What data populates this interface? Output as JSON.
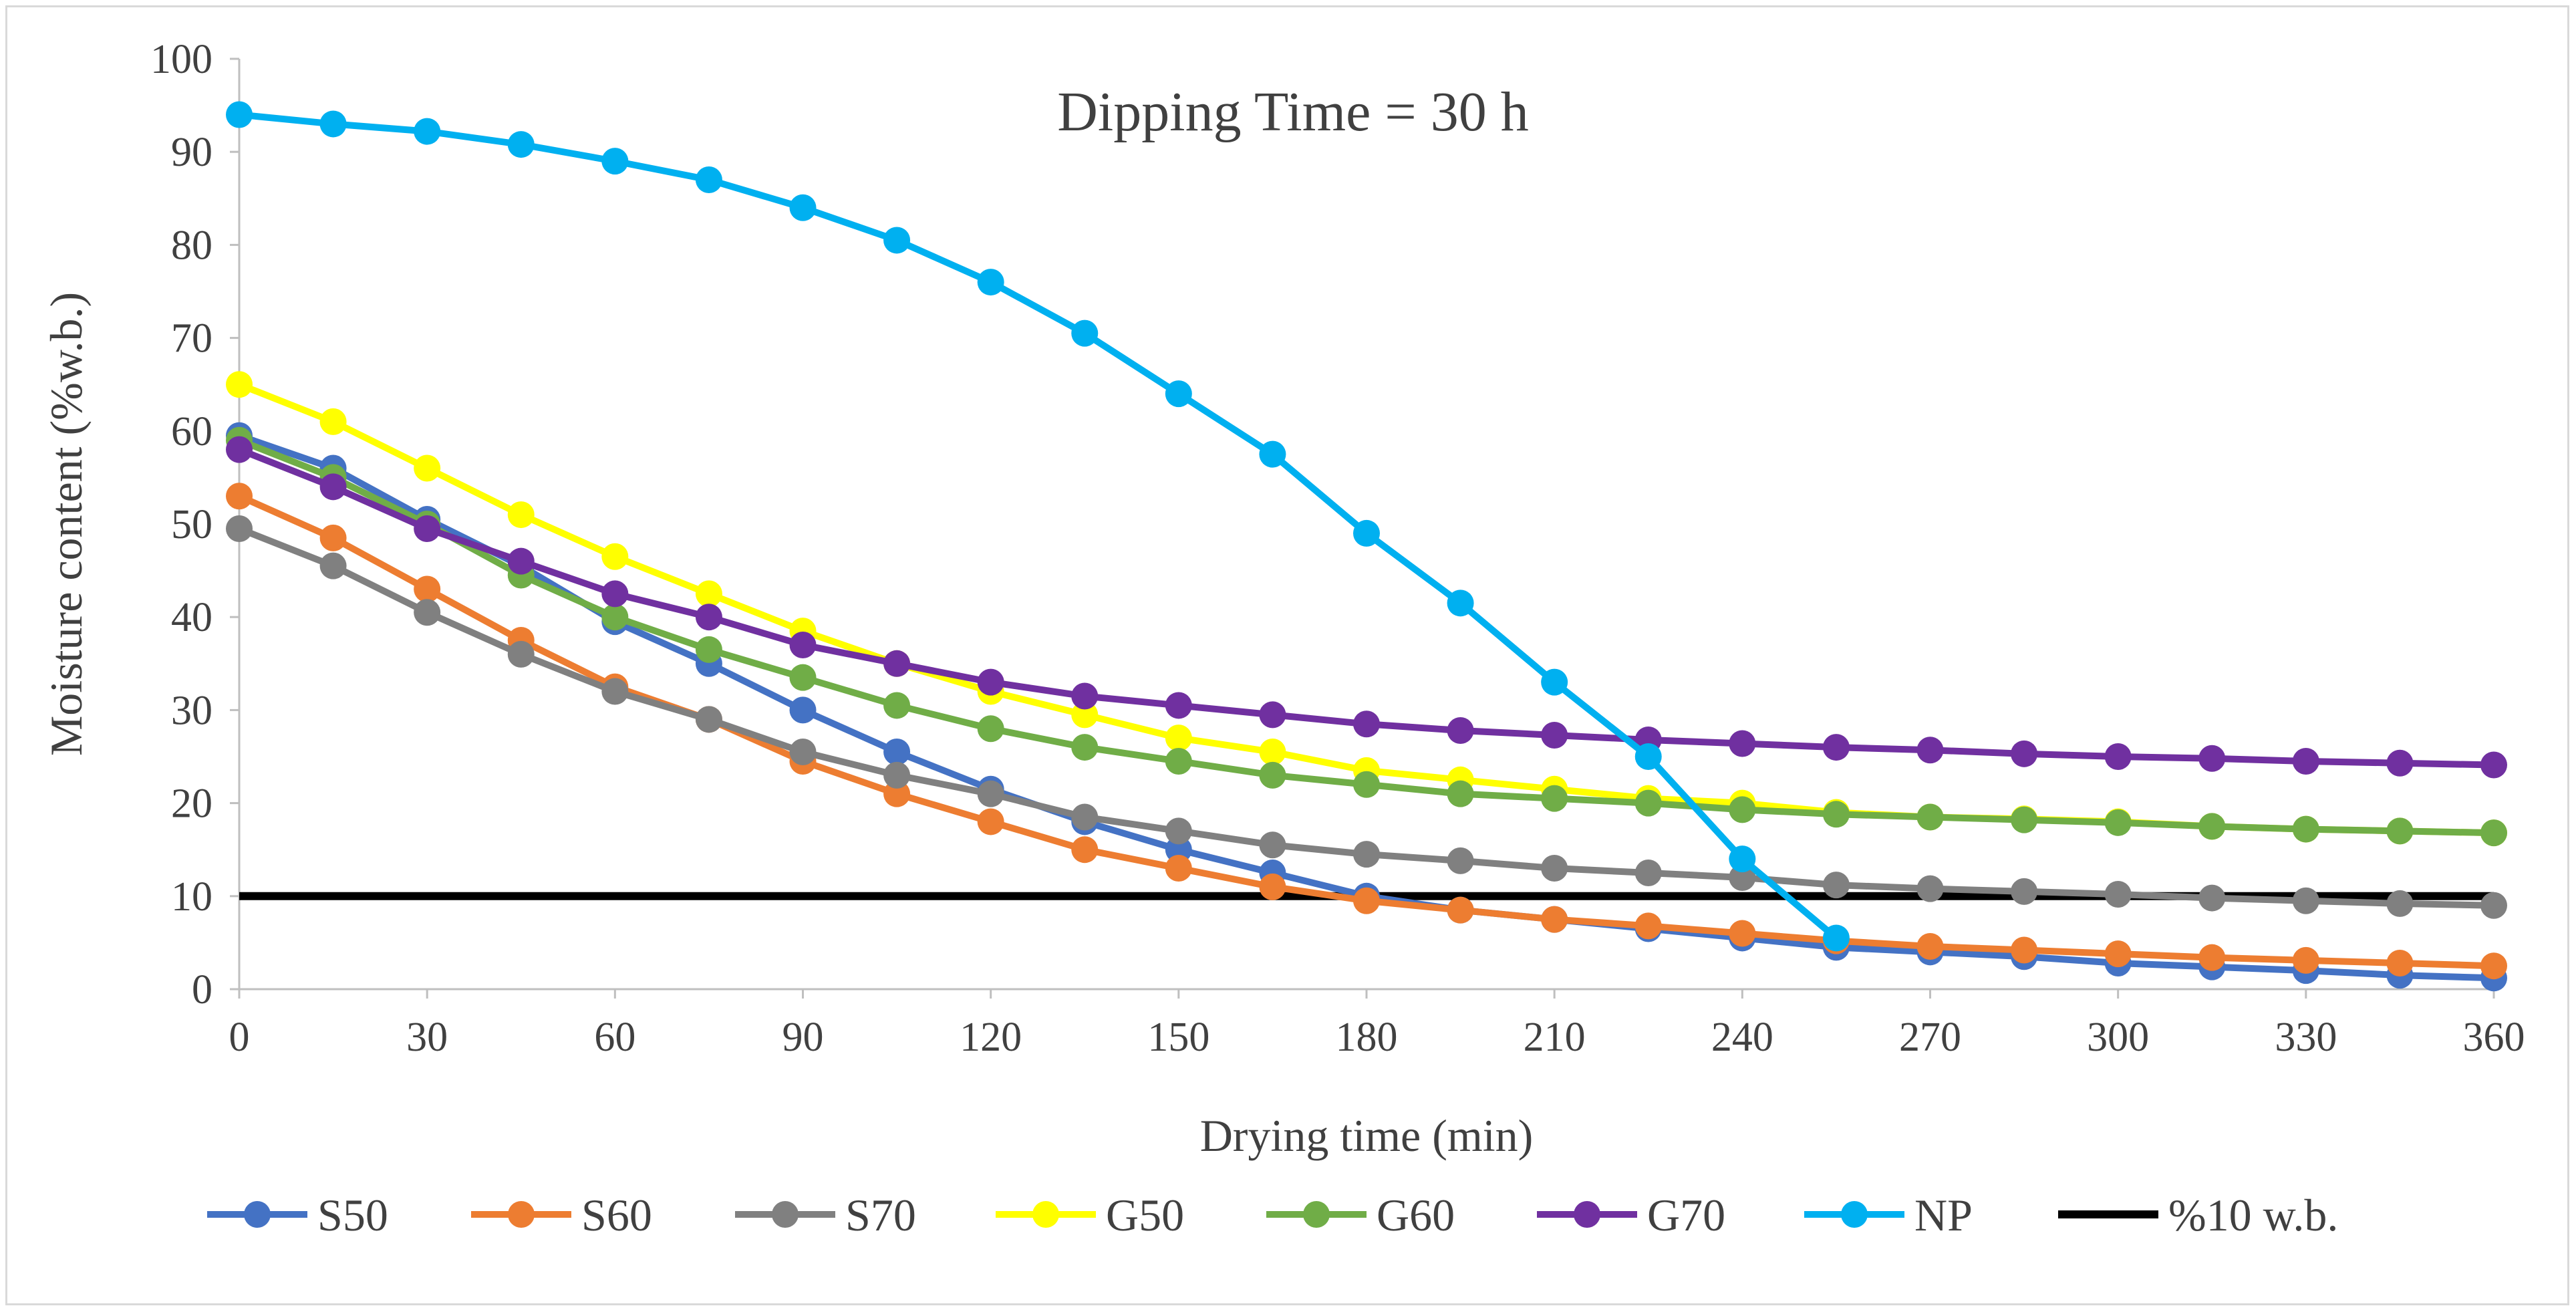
{
  "chart_data": {
    "type": "line",
    "title": "Dipping Time = 30 h",
    "xlabel": "Drying time (min)",
    "ylabel": "Moisture content (%w.b.)",
    "xlim": [
      0,
      360
    ],
    "ylim": [
      0,
      100
    ],
    "x_ticks": [
      0,
      30,
      60,
      90,
      120,
      150,
      180,
      210,
      240,
      270,
      300,
      330,
      360
    ],
    "y_ticks": [
      0,
      10,
      20,
      30,
      40,
      50,
      60,
      70,
      80,
      90,
      100
    ],
    "x_tick_labels": [
      "0",
      "30",
      "60",
      "90",
      "120",
      "150",
      "180",
      "210",
      "240",
      "270",
      "300",
      "330",
      "360"
    ],
    "y_tick_labels": [
      "0",
      "10",
      "20",
      "30",
      "40",
      "50",
      "60",
      "70",
      "80",
      "90",
      "100"
    ],
    "grid": false,
    "legend_position": "bottom",
    "series": [
      {
        "name": "S50",
        "color": "#4472C4",
        "marker": true,
        "x": [
          0,
          15,
          30,
          45,
          60,
          75,
          90,
          105,
          120,
          135,
          150,
          165,
          180,
          195,
          210,
          225,
          240,
          255,
          270,
          285,
          300,
          315,
          330,
          345,
          360
        ],
        "y": [
          59.5,
          56,
          50.5,
          45.5,
          39.5,
          35,
          30,
          25.5,
          21.5,
          18,
          15,
          12.5,
          10,
          8.5,
          7.5,
          6.5,
          5.5,
          4.5,
          4,
          3.5,
          2.8,
          2.4,
          2.0,
          1.5,
          1.2
        ]
      },
      {
        "name": "S60",
        "color": "#ED7D31",
        "marker": true,
        "x": [
          0,
          15,
          30,
          45,
          60,
          75,
          90,
          105,
          120,
          135,
          150,
          165,
          180,
          195,
          210,
          225,
          240,
          255,
          270,
          285,
          300,
          315,
          330,
          345,
          360
        ],
        "y": [
          53,
          48.5,
          43,
          37.5,
          32.5,
          29,
          24.5,
          21,
          18,
          15,
          13,
          11,
          9.5,
          8.5,
          7.5,
          6.8,
          6,
          5.2,
          4.6,
          4.2,
          3.8,
          3.4,
          3.1,
          2.8,
          2.5
        ]
      },
      {
        "name": "S70",
        "color": "#808080",
        "marker": true,
        "x": [
          0,
          15,
          30,
          45,
          60,
          75,
          90,
          105,
          120,
          135,
          150,
          165,
          180,
          195,
          210,
          225,
          240,
          255,
          270,
          285,
          300,
          315,
          330,
          345,
          360
        ],
        "y": [
          49.5,
          45.5,
          40.5,
          36,
          32,
          29,
          25.5,
          23,
          21,
          18.5,
          17,
          15.5,
          14.5,
          13.8,
          13,
          12.5,
          12,
          11.2,
          10.8,
          10.5,
          10.2,
          9.8,
          9.5,
          9.2,
          9.0
        ]
      },
      {
        "name": "G50",
        "color": "#FFFF00",
        "marker": true,
        "x": [
          0,
          15,
          30,
          45,
          60,
          75,
          90,
          105,
          120,
          135,
          150,
          165,
          180,
          195,
          210,
          225,
          240,
          255,
          270,
          285,
          300,
          315,
          330,
          345,
          360
        ],
        "y": [
          65,
          61,
          56,
          51,
          46.5,
          42.5,
          38.5,
          35,
          32,
          29.5,
          27,
          25.5,
          23.5,
          22.5,
          21.5,
          20.5,
          20,
          19,
          18.5,
          18.3,
          18,
          17.5,
          17.2,
          17,
          16.8
        ]
      },
      {
        "name": "G60",
        "color": "#70AD47",
        "marker": true,
        "x": [
          0,
          15,
          30,
          45,
          60,
          75,
          90,
          105,
          120,
          135,
          150,
          165,
          180,
          195,
          210,
          225,
          240,
          255,
          270,
          285,
          300,
          315,
          330,
          345,
          360
        ],
        "y": [
          59,
          55,
          50,
          44.5,
          40,
          36.5,
          33.5,
          30.5,
          28,
          26,
          24.5,
          23,
          22,
          21,
          20.5,
          20,
          19.3,
          18.8,
          18.5,
          18.2,
          17.9,
          17.5,
          17.2,
          17,
          16.8
        ]
      },
      {
        "name": "G70",
        "color": "#7030A0",
        "marker": true,
        "x": [
          0,
          15,
          30,
          45,
          60,
          75,
          90,
          105,
          120,
          135,
          150,
          165,
          180,
          195,
          210,
          225,
          240,
          255,
          270,
          285,
          300,
          315,
          330,
          345,
          360
        ],
        "y": [
          58,
          54,
          49.5,
          46,
          42.5,
          40,
          37,
          35,
          33,
          31.5,
          30.5,
          29.5,
          28.5,
          27.8,
          27.3,
          26.8,
          26.4,
          26,
          25.7,
          25.3,
          25,
          24.8,
          24.5,
          24.3,
          24.1
        ]
      },
      {
        "name": "NP",
        "color": "#00B0F0",
        "marker": true,
        "x": [
          0,
          15,
          30,
          45,
          60,
          75,
          90,
          105,
          120,
          135,
          150,
          165,
          180,
          195,
          210,
          225,
          240,
          255
        ],
        "y": [
          94,
          93,
          92.2,
          90.8,
          89,
          87,
          84,
          80.5,
          76,
          70.5,
          64,
          57.5,
          49,
          41.5,
          33,
          25,
          14,
          5.5
        ]
      },
      {
        "name": "%10 w.b.",
        "color": "#000000",
        "marker": false,
        "x": [
          0,
          360
        ],
        "y": [
          10,
          10
        ]
      }
    ]
  }
}
